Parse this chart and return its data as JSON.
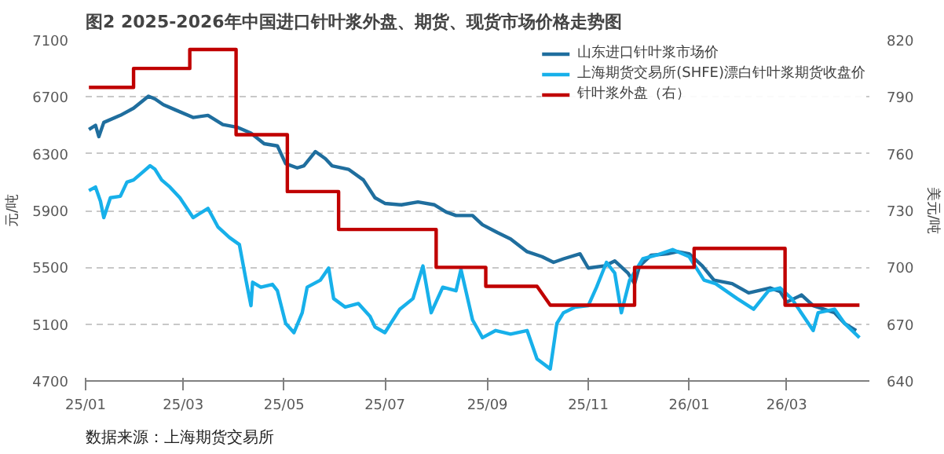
{
  "chart_data": {
    "type": "line",
    "title": "图2 2025-2026年中国进口针叶浆外盘、期货、现货市场价格走势图",
    "ylabel": "元/吨",
    "y2label": "美元/吨",
    "annotations": [
      "数据来源：上海期货交易所"
    ],
    "xlim": [
      "2025-01-01",
      "2026-04-20"
    ],
    "xticks": [
      {
        "value": "2025-01-01",
        "label": "25/01"
      },
      {
        "value": "2025-03-01",
        "label": "25/03"
      },
      {
        "value": "2025-05-01",
        "label": "25/05"
      },
      {
        "value": "2025-07-01",
        "label": "25/07"
      },
      {
        "value": "2025-09-01",
        "label": "25/09"
      },
      {
        "value": "2025-11-01",
        "label": "25/11"
      },
      {
        "value": "2026-01-01",
        "label": "26/01"
      },
      {
        "value": "2026-03-01",
        "label": "26/03"
      }
    ],
    "ylim": [
      4700,
      7100
    ],
    "yticks": [
      4700,
      5100,
      5500,
      5900,
      6300,
      6700,
      7100
    ],
    "y2lim": [
      640,
      820
    ],
    "y2ticks": [
      640,
      670,
      700,
      730,
      760,
      790,
      820
    ],
    "grid": "y",
    "legend": "top right",
    "line_style": "solid",
    "series": [
      {
        "name": "山东进口针叶浆市场价",
        "color": "#1f6e9e",
        "x": [
          "2025-01-03",
          "2025-01-07",
          "2025-01-09",
          "2025-01-12",
          "2025-01-22",
          "2025-01-30",
          "2025-02-08",
          "2025-02-12",
          "2025-02-17",
          "2025-02-24",
          "2025-03-07",
          "2025-03-16",
          "2025-03-25",
          "2025-04-03",
          "2025-04-11",
          "2025-04-19",
          "2025-04-27",
          "2025-05-02",
          "2025-05-09",
          "2025-05-13",
          "2025-05-20",
          "2025-05-26",
          "2025-05-30",
          "2025-06-09",
          "2025-06-18",
          "2025-06-25",
          "2025-07-01",
          "2025-07-11",
          "2025-07-21",
          "2025-07-31",
          "2025-08-07",
          "2025-08-13",
          "2025-08-23",
          "2025-08-29",
          "2025-09-07",
          "2025-09-15",
          "2025-09-25",
          "2025-10-04",
          "2025-10-11",
          "2025-10-17",
          "2025-10-27",
          "2025-11-01",
          "2025-11-11",
          "2025-11-17",
          "2025-11-25",
          "2025-11-29",
          "2025-12-02",
          "2025-12-09",
          "2025-12-19",
          "2025-12-25",
          "2026-01-01",
          "2026-01-09",
          "2026-01-16",
          "2026-01-27",
          "2026-02-06",
          "2026-02-19",
          "2026-02-25",
          "2026-03-01",
          "2026-03-10",
          "2026-03-17",
          "2026-03-30",
          "2026-04-05",
          "2026-04-12"
        ],
        "values": [
          6470,
          6500,
          6420,
          6520,
          6570,
          6620,
          6705,
          6685,
          6645,
          6610,
          6555,
          6570,
          6505,
          6485,
          6445,
          6370,
          6355,
          6230,
          6200,
          6215,
          6315,
          6265,
          6215,
          6190,
          6115,
          5990,
          5950,
          5940,
          5960,
          5940,
          5890,
          5865,
          5865,
          5800,
          5745,
          5700,
          5610,
          5575,
          5535,
          5560,
          5595,
          5495,
          5510,
          5545,
          5460,
          5385,
          5510,
          5585,
          5595,
          5610,
          5595,
          5510,
          5410,
          5385,
          5320,
          5355,
          5330,
          5255,
          5305,
          5230,
          5180,
          5105,
          5055
        ]
      },
      {
        "name": "上海期货交易所(SHFE)漂白针叶浆期货收盘价",
        "color": "#17b0ea",
        "x": [
          "2025-01-03",
          "2025-01-07",
          "2025-01-10",
          "2025-01-12",
          "2025-01-16",
          "2025-01-22",
          "2025-01-26",
          "2025-01-30",
          "2025-02-04",
          "2025-02-09",
          "2025-02-12",
          "2025-02-16",
          "2025-02-21",
          "2025-02-27",
          "2025-03-07",
          "2025-03-16",
          "2025-03-22",
          "2025-03-29",
          "2025-04-04",
          "2025-04-08",
          "2025-04-11",
          "2025-04-12",
          "2025-04-17",
          "2025-04-24",
          "2025-04-27",
          "2025-05-02",
          "2025-05-07",
          "2025-05-12",
          "2025-05-15",
          "2025-05-23",
          "2025-05-28",
          "2025-05-31",
          "2025-06-07",
          "2025-06-15",
          "2025-06-22",
          "2025-06-25",
          "2025-07-01",
          "2025-07-10",
          "2025-07-18",
          "2025-07-24",
          "2025-07-29",
          "2025-08-05",
          "2025-08-13",
          "2025-08-16",
          "2025-08-23",
          "2025-08-29",
          "2025-09-06",
          "2025-09-15",
          "2025-09-25",
          "2025-10-01",
          "2025-10-09",
          "2025-10-13",
          "2025-10-17",
          "2025-10-24",
          "2025-11-01",
          "2025-11-06",
          "2025-11-12",
          "2025-11-17",
          "2025-11-21",
          "2025-11-26",
          "2025-12-04",
          "2025-12-12",
          "2025-12-22",
          "2026-01-01",
          "2026-01-10",
          "2026-01-17",
          "2026-01-30",
          "2026-02-09",
          "2026-02-18",
          "2026-02-25",
          "2026-03-04",
          "2026-03-17",
          "2026-03-20",
          "2026-03-30",
          "2026-04-05",
          "2026-04-14"
        ],
        "values": [
          6040,
          6065,
          5965,
          5850,
          5990,
          6000,
          6100,
          6115,
          6165,
          6215,
          6190,
          6115,
          6065,
          5990,
          5850,
          5915,
          5785,
          5710,
          5660,
          5410,
          5230,
          5395,
          5360,
          5380,
          5335,
          5105,
          5040,
          5180,
          5360,
          5410,
          5495,
          5280,
          5220,
          5245,
          5155,
          5080,
          5040,
          5205,
          5280,
          5510,
          5180,
          5360,
          5335,
          5485,
          5130,
          5005,
          5055,
          5030,
          5055,
          4855,
          4785,
          5105,
          5180,
          5220,
          5230,
          5360,
          5535,
          5460,
          5180,
          5410,
          5560,
          5585,
          5625,
          5575,
          5410,
          5385,
          5280,
          5205,
          5335,
          5355,
          5280,
          5055,
          5180,
          5205,
          5105,
          5005
        ]
      },
      {
        "name": "针叶浆外盘（右）",
        "color": "#c00000",
        "axis": "y2",
        "x": [
          "2025-01-03",
          "2025-01-30",
          "2025-01-30",
          "2025-03-05",
          "2025-03-05",
          "2025-04-02",
          "2025-04-02",
          "2025-05-03",
          "2025-05-03",
          "2025-06-03",
          "2025-06-03",
          "2025-08-01",
          "2025-08-01",
          "2025-08-31",
          "2025-08-31",
          "2025-10-01",
          "2025-10-09",
          "2025-11-29",
          "2025-11-29",
          "2026-01-04",
          "2026-01-04",
          "2026-02-28",
          "2026-02-28",
          "2026-04-14"
        ],
        "values": [
          795,
          795,
          805,
          805,
          815,
          815,
          770,
          770,
          740,
          740,
          720,
          720,
          700,
          700,
          690,
          690,
          680,
          680,
          700,
          700,
          710,
          710,
          680,
          680
        ]
      }
    ]
  }
}
